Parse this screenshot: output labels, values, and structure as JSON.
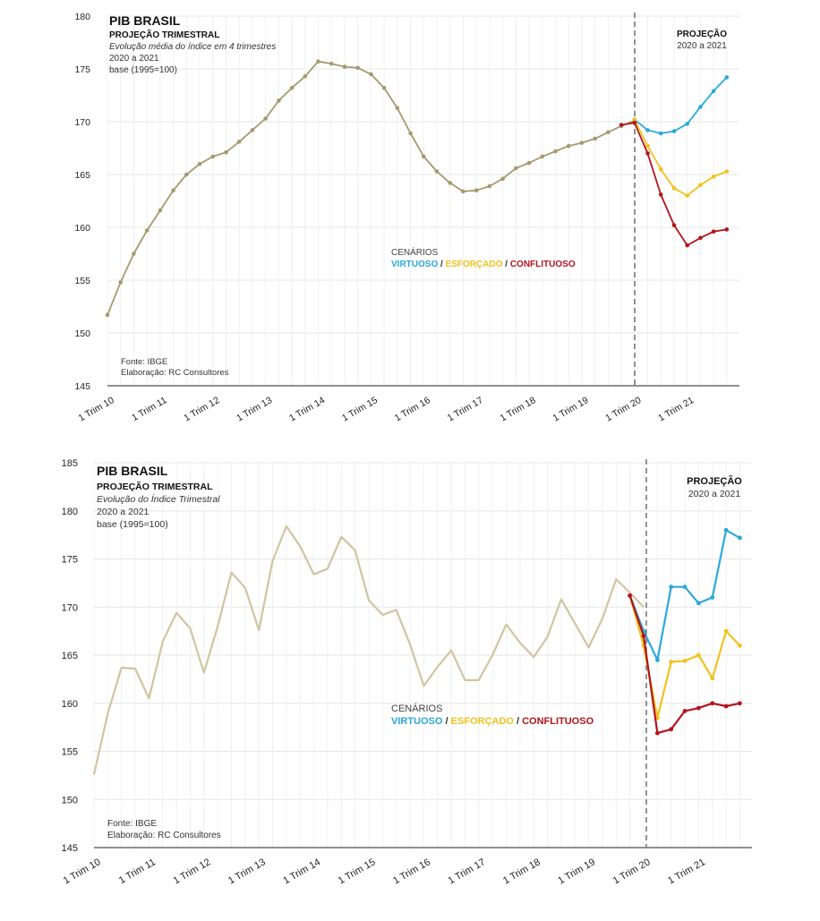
{
  "charts": [
    {
      "title": "PIB BRASIL",
      "subtitle": "PROJEÇÃO TRIMESTRAL",
      "description": "Evolução média do índice em 4 trimestres",
      "period": "2020 a 2021",
      "base": "base (1995=100)",
      "projection_label": "PROJEÇÃO",
      "projection_period": "2020 a 2021",
      "scenarios_label": "CENÁRIOS",
      "source": "Fonte: IBGE",
      "author": "Elaboração: RC Consultores"
    },
    {
      "title": "PIB BRASIL",
      "subtitle": "PROJEÇÃO TRIMESTRAL",
      "description": "Evolução do Índice Trimestral",
      "period": "2020 a 2021",
      "base": "base (1995=100)",
      "projection_label": "PROJEÇÃO",
      "projection_period": "2020 a 2021",
      "scenarios_label": "CENÁRIOS",
      "source": "Fonte: IBGE",
      "author": "Elaboração: RC Consultores"
    }
  ],
  "scenario_names": {
    "virtuoso": "VIRTUOSO",
    "esforcado": "ESFORÇADO",
    "conflituoso": "CONFLITUOSO",
    "separator": " / "
  },
  "colors": {
    "historical": "#a59a6e",
    "historical_line_2": "#cfc5a0",
    "virtuoso": "#2aa9d9",
    "esforcado": "#f2c21c",
    "conflituoso": "#b3141d",
    "grid": "#e6e6e6",
    "divider": "#777777"
  },
  "chart_data": [
    {
      "type": "line",
      "title": "PIB BRASIL",
      "x_tick_labels": [
        "1 Trim 10",
        "1 Trim 11",
        "1 Trim 12",
        "1 Trim 13",
        "1 Trim 14",
        "1 Trim 15",
        "1 Trim 16",
        "1 Trim 17",
        "1 Trim 18",
        "1 Trim 19",
        "1 Trim 20",
        "1 Trim 21"
      ],
      "ylim": [
        145,
        180
      ],
      "yticks": [
        145,
        150,
        155,
        160,
        165,
        170,
        175,
        180
      ],
      "grid": true,
      "projection_start_label": "1 Trim 20",
      "series": [
        {
          "name": "",
          "key": "historical",
          "start": 0,
          "values": [
            151.7,
            154.8,
            157.5,
            159.7,
            161.6,
            163.5,
            165.0,
            166.0,
            166.7,
            167.1,
            168.1,
            169.2,
            170.3,
            172.0,
            173.2,
            174.3,
            175.7,
            175.5,
            175.2,
            175.1,
            174.5,
            173.2,
            171.3,
            168.9,
            166.7,
            165.3,
            164.2,
            163.4,
            163.5,
            163.9,
            164.6,
            165.6,
            166.1,
            166.7,
            167.2,
            167.7,
            168.0,
            168.4,
            169.0,
            169.6,
            170.1
          ]
        },
        {
          "name": "VIRTUOSO",
          "key": "virtuoso",
          "start": 40,
          "values": [
            170.2,
            169.2,
            168.9,
            169.1,
            169.8,
            171.4,
            172.9,
            174.2
          ]
        },
        {
          "name": "ESFORÇADO",
          "key": "esforcado",
          "start": 40,
          "values": [
            170.2,
            167.7,
            165.5,
            163.7,
            163.0,
            164.0,
            164.8,
            165.3
          ]
        },
        {
          "name": "CONFLITUOSO",
          "key": "conflituoso",
          "start": 39,
          "values": [
            169.7,
            169.9,
            167.0,
            163.1,
            160.2,
            158.3,
            159.0,
            159.6,
            159.8
          ]
        }
      ]
    },
    {
      "type": "line",
      "title": "PIB BRASIL",
      "x_tick_labels": [
        "1 Trim 10",
        "1 Trim 11",
        "1 Trim 12",
        "1 Trim 13",
        "1 Trim 14",
        "1 Trim 15",
        "1 Trim 16",
        "1 Trim 17",
        "1 Trim 18",
        "1 Trim 19",
        "1 Trim 20",
        "1 Trim 21"
      ],
      "ylim": [
        145,
        185
      ],
      "yticks": [
        145,
        150,
        155,
        160,
        165,
        170,
        175,
        180,
        185
      ],
      "grid": true,
      "projection_start_label": "1 Trim 20",
      "series": [
        {
          "name": "",
          "key": "historical",
          "start": 0,
          "values": [
            152.6,
            158.9,
            163.7,
            163.6,
            160.5,
            166.4,
            169.4,
            167.8,
            163.2,
            168.0,
            173.6,
            172.0,
            167.6,
            174.8,
            178.4,
            176.3,
            173.4,
            174.0,
            177.3,
            175.9,
            170.7,
            169.2,
            169.7,
            166.1,
            161.8,
            163.8,
            165.5,
            162.4,
            162.4,
            165.0,
            168.2,
            166.3,
            164.8,
            166.9,
            170.8,
            168.3,
            165.8,
            168.8,
            172.9,
            171.5,
            170.0
          ]
        },
        {
          "name": "VIRTUOSO",
          "key": "virtuoso",
          "start": 39,
          "values": [
            171.2,
            167.5,
            164.5,
            172.1,
            172.1,
            170.4,
            171.0,
            178.0,
            177.2
          ]
        },
        {
          "name": "ESFORÇADO",
          "key": "esforcado",
          "start": 39,
          "values": [
            171.2,
            166.0,
            158.5,
            164.3,
            164.4,
            165.0,
            162.6,
            167.5,
            166.0
          ]
        },
        {
          "name": "CONFLITUOSO",
          "key": "conflituoso",
          "start": 39,
          "values": [
            171.2,
            167.0,
            156.9,
            157.3,
            159.2,
            159.5,
            160.0,
            159.7,
            160.0
          ]
        }
      ]
    }
  ]
}
